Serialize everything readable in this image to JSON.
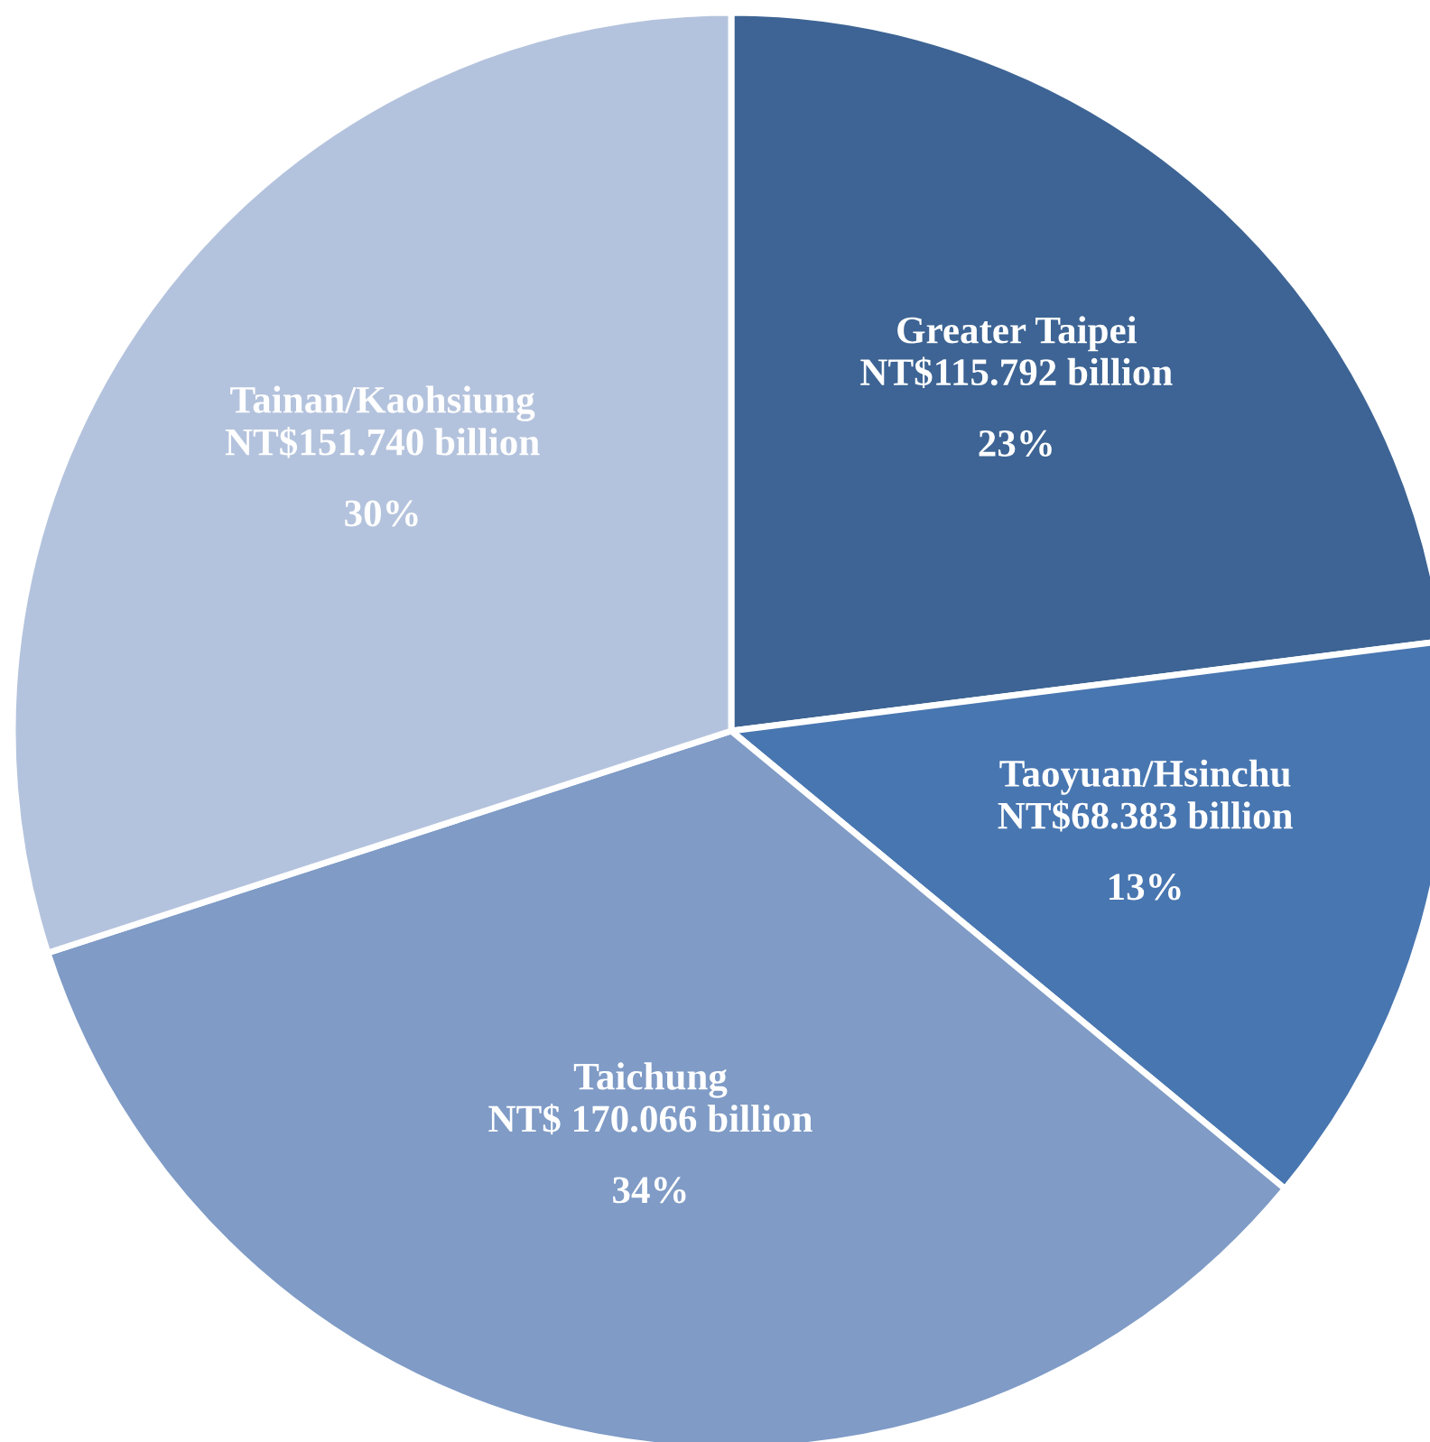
{
  "chart_data": {
    "type": "pie",
    "categories": [
      "Greater Taipei",
      "Taoyuan/Hsinchu",
      "Taichung",
      "Tainan/Kaohsiung"
    ],
    "values": [
      23,
      13,
      34,
      30
    ],
    "colors": [
      "#3d6494",
      "#4876b0",
      "#7f9bc6",
      "#b4c3dd"
    ],
    "annotations": [
      "NT$115.792 billion",
      "NT$68.383 billion",
      "NT$ 170.066 billion",
      "NT$151.740 billion"
    ],
    "value_labels": [
      "23%",
      "13%",
      "34%",
      "30%"
    ]
  }
}
